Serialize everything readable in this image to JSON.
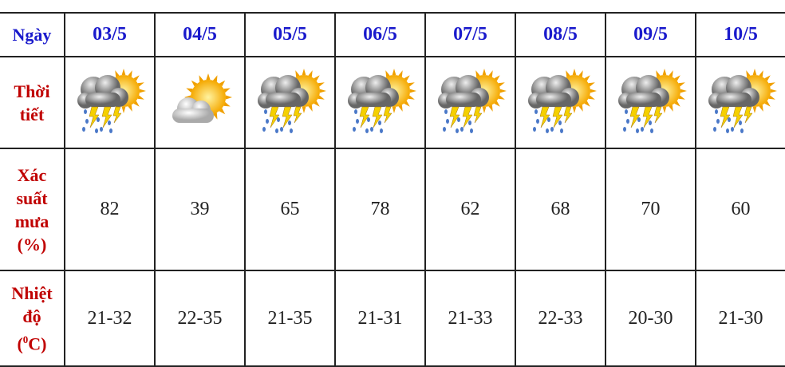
{
  "labels": {
    "date": "Ngày",
    "weather": "Thời tiết",
    "rain": [
      "Xác",
      "suất",
      "mưa",
      "(%)"
    ],
    "temp": [
      "Nhiệt",
      "độ",
      "(",
      "0",
      "C)"
    ]
  },
  "days": [
    {
      "date": "03/5",
      "icon": "thunderstorm-sun-icon",
      "rain": "82",
      "temp": "21-32"
    },
    {
      "date": "04/5",
      "icon": "partly-cloudy-icon",
      "rain": "39",
      "temp": "22-35"
    },
    {
      "date": "05/5",
      "icon": "thunderstorm-sun-icon",
      "rain": "65",
      "temp": "21-35"
    },
    {
      "date": "06/5",
      "icon": "thunderstorm-sun-icon",
      "rain": "78",
      "temp": "21-31"
    },
    {
      "date": "07/5",
      "icon": "thunderstorm-sun-icon",
      "rain": "62",
      "temp": "21-33"
    },
    {
      "date": "08/5",
      "icon": "thunderstorm-sun-icon",
      "rain": "68",
      "temp": "22-33"
    },
    {
      "date": "09/5",
      "icon": "thunderstorm-sun-icon",
      "rain": "70",
      "temp": "20-30"
    },
    {
      "date": "10/5",
      "icon": "thunderstorm-sun-icon",
      "rain": "60",
      "temp": "21-30"
    }
  ],
  "colors": {
    "header": "#1a1acc",
    "label": "#c00000"
  }
}
